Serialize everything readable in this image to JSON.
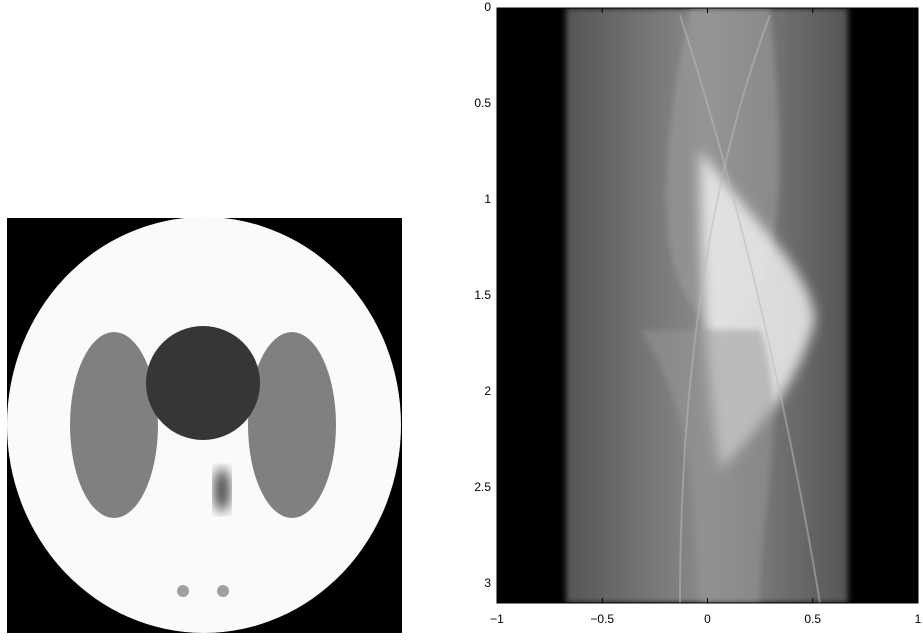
{
  "chart_data": {
    "type": "image",
    "xlim": [
      -1,
      1
    ],
    "xticks": [
      {
        "value": -1,
        "label": "−1"
      },
      {
        "value": -0.5,
        "label": "−0.5"
      },
      0,
      0.5,
      1
    ],
    "ylim": [
      0,
      3.1
    ],
    "yticks": [
      0,
      0.5,
      1,
      1.5,
      2,
      2.5,
      3
    ],
    "y_inverted": true
  }
}
